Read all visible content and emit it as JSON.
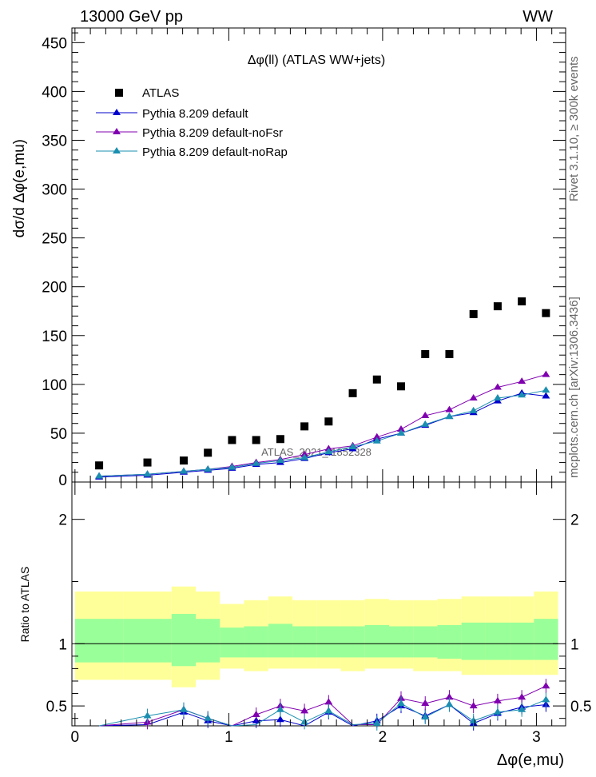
{
  "header": {
    "left": "13000 GeV pp",
    "right": "WW"
  },
  "side_text": {
    "rivet": "Rivet 3.1.10, ≥ 300k events",
    "mcplots": "mcplots.cern.ch [arXiv:1306.3436]"
  },
  "watermark": "ATLAS_2021_I1852328",
  "colors": {
    "atlas": "#000000",
    "default": "#0000cc",
    "noFsr": "#8000b0",
    "noRap": "#1a8fb0",
    "band_yellow": "#ffff99",
    "band_green": "#99ff99"
  },
  "chart_data": [
    {
      "type": "scatter",
      "title": "Δφ(ll) (ATLAS WW+jets)",
      "ylabel": "dσ/d Δφ(e,mu)",
      "xlabel": "",
      "xlim": [
        -0.02,
        3.19
      ],
      "ylim": [
        0,
        465
      ],
      "y_ticks": [
        50,
        100,
        150,
        200,
        250,
        300,
        350,
        400,
        450
      ],
      "x": [
        0.157,
        0.471,
        0.707,
        0.864,
        1.021,
        1.178,
        1.335,
        1.492,
        1.649,
        1.806,
        1.963,
        2.12,
        2.277,
        2.434,
        2.591,
        2.748,
        2.905,
        3.062
      ],
      "series": [
        {
          "name": "ATLAS",
          "marker": "square",
          "values": [
            17,
            20,
            22,
            30,
            43,
            43,
            44,
            57,
            62,
            91,
            105,
            98,
            131,
            131,
            172,
            180,
            185,
            173
          ]
        },
        {
          "name": "Pythia 8.209 default",
          "marker": "triangle",
          "values": [
            5,
            7,
            10,
            12,
            14,
            18,
            20,
            24,
            30,
            34,
            44,
            50,
            58,
            67,
            71,
            83,
            91,
            88
          ]
        },
        {
          "name": "Pythia 8.209 default-noFsr",
          "marker": "triangle",
          "values": [
            6,
            8,
            11,
            13,
            16,
            20,
            23,
            28,
            34,
            37,
            46,
            54,
            68,
            74,
            86,
            97,
            103,
            110
          ]
        },
        {
          "name": "Pythia 8.209 default-noRap",
          "marker": "triangle",
          "values": [
            6,
            8,
            11,
            13,
            15,
            19,
            22,
            25,
            31,
            36,
            42,
            50,
            59,
            67,
            73,
            86,
            89,
            94
          ]
        }
      ]
    },
    {
      "type": "line",
      "title": "",
      "ylabel": "Ratio to ATLAS",
      "xlabel": "Δφ(e,mu)",
      "xlim": [
        -0.02,
        3.19
      ],
      "ylim": [
        0.34,
        2.3
      ],
      "x_ticks": [
        0,
        1,
        2,
        3
      ],
      "y_ticks": [
        0.5,
        1,
        2
      ],
      "bin_edges": [
        0,
        0.314,
        0.628,
        0.785,
        0.942,
        1.099,
        1.257,
        1.414,
        1.571,
        1.728,
        1.885,
        2.042,
        2.199,
        2.356,
        2.513,
        2.67,
        2.827,
        2.984,
        3.141
      ],
      "band_yellow": [
        [
          0.71,
          1.42
        ],
        [
          0.71,
          1.42
        ],
        [
          0.65,
          1.46
        ],
        [
          0.71,
          1.42
        ],
        [
          0.8,
          1.32
        ],
        [
          0.78,
          1.35
        ],
        [
          0.8,
          1.38
        ],
        [
          0.8,
          1.35
        ],
        [
          0.8,
          1.35
        ],
        [
          0.78,
          1.35
        ],
        [
          0.8,
          1.36
        ],
        [
          0.8,
          1.35
        ],
        [
          0.78,
          1.35
        ],
        [
          0.78,
          1.36
        ],
        [
          0.75,
          1.38
        ],
        [
          0.75,
          1.38
        ],
        [
          0.75,
          1.38
        ],
        [
          0.75,
          1.42
        ]
      ],
      "band_green": [
        [
          0.85,
          1.2
        ],
        [
          0.85,
          1.2
        ],
        [
          0.82,
          1.24
        ],
        [
          0.85,
          1.2
        ],
        [
          0.89,
          1.13
        ],
        [
          0.89,
          1.14
        ],
        [
          0.89,
          1.16
        ],
        [
          0.89,
          1.14
        ],
        [
          0.89,
          1.14
        ],
        [
          0.89,
          1.14
        ],
        [
          0.89,
          1.15
        ],
        [
          0.89,
          1.14
        ],
        [
          0.89,
          1.14
        ],
        [
          0.88,
          1.15
        ],
        [
          0.87,
          1.17
        ],
        [
          0.87,
          1.17
        ],
        [
          0.87,
          1.17
        ],
        [
          0.87,
          1.2
        ]
      ],
      "series": [
        {
          "name": "Pythia 8.209 default",
          "values": [
            0.3,
            0.35,
            0.45,
            0.38,
            0.32,
            0.38,
            0.39,
            0.32,
            0.45,
            0.33,
            0.38,
            0.5,
            0.42,
            0.51,
            0.36,
            0.44,
            0.49,
            0.51
          ]
        },
        {
          "name": "Pythia 8.209 default-noFsr",
          "values": [
            0.31,
            0.37,
            0.47,
            0.4,
            0.33,
            0.43,
            0.5,
            0.46,
            0.53,
            0.35,
            0.35,
            0.56,
            0.52,
            0.57,
            0.5,
            0.54,
            0.57,
            0.66
          ]
        },
        {
          "name": "Pythia 8.209 default-noRap",
          "values": [
            0.31,
            0.42,
            0.47,
            0.4,
            0.33,
            0.35,
            0.47,
            0.37,
            0.46,
            0.35,
            0.36,
            0.52,
            0.41,
            0.51,
            0.38,
            0.45,
            0.47,
            0.55
          ]
        }
      ]
    }
  ]
}
